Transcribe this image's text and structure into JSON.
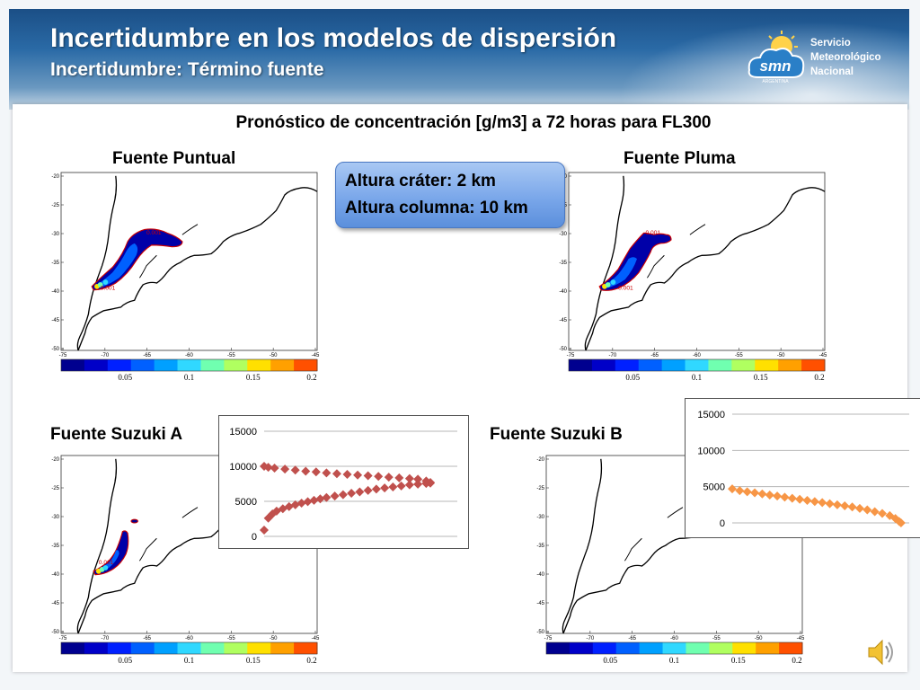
{
  "header": {
    "title": "Incertidumbre en los modelos de dispersión",
    "subtitle": "Incertidumbre: Término fuente",
    "logo_lines": [
      "Servicio",
      "Meteorológico",
      "Nacional"
    ],
    "logo_mark": "smn",
    "logo_small_text": "ARGENTINA"
  },
  "main_heading": "Pronóstico de concentración [g/m3] a 72 horas para FL300",
  "callout": {
    "line1": "Altura cráter: 2 km",
    "line2": "Altura columna: 10 km"
  },
  "maps": {
    "puntual": {
      "title": "Fuente Puntual",
      "plume_labels": [
        "0.001",
        "0.001"
      ]
    },
    "pluma": {
      "title": "Fuente Pluma",
      "plume_labels": [
        "0.001",
        "0.001"
      ]
    },
    "suzuki_a": {
      "title": "Fuente Suzuki A",
      "plume_labels": [
        "0.001"
      ]
    },
    "suzuki_b": {
      "title": "Fuente Suzuki B",
      "plume_labels": []
    },
    "lat_ticks": [
      "-20",
      "-25",
      "-30",
      "-35",
      "-40",
      "-45",
      "-50"
    ],
    "lon_ticks": [
      "-75",
      "-70",
      "-65",
      "-60",
      "-55",
      "-50",
      "-45"
    ],
    "colorbar_ticks": [
      "0.05",
      "0.1",
      "0.15",
      "0.2"
    ],
    "colorbar_colors": [
      "#00008f",
      "#0000c8",
      "#0020ff",
      "#0060ff",
      "#00a0ff",
      "#30d8ff",
      "#70ffb0",
      "#b0ff60",
      "#ffe000",
      "#ffa000",
      "#ff5000"
    ]
  },
  "chart_data": [
    {
      "type": "scatter",
      "series": [
        {
          "color": "#c0504d",
          "points": [
            [
              0,
              900
            ],
            [
              2,
              2600
            ],
            [
              4,
              3200
            ],
            [
              6,
              3600
            ],
            [
              9,
              3950
            ],
            [
              12,
              4250
            ],
            [
              15,
              4500
            ],
            [
              18,
              4750
            ],
            [
              21,
              4950
            ],
            [
              24,
              5150
            ],
            [
              27,
              5350
            ],
            [
              30,
              5550
            ],
            [
              34,
              5750
            ],
            [
              38,
              5950
            ],
            [
              42,
              6150
            ],
            [
              46,
              6350
            ],
            [
              50,
              6550
            ],
            [
              54,
              6750
            ],
            [
              58,
              6900
            ],
            [
              62,
              7050
            ],
            [
              66,
              7200
            ],
            [
              70,
              7350
            ],
            [
              74,
              7450
            ],
            [
              78,
              7550
            ],
            [
              80,
              7600
            ],
            [
              80,
              7700
            ],
            [
              78,
              7900
            ],
            [
              74,
              8150
            ],
            [
              70,
              8250
            ],
            [
              65,
              8350
            ],
            [
              60,
              8450
            ],
            [
              55,
              8550
            ],
            [
              50,
              8650
            ],
            [
              45,
              8750
            ],
            [
              40,
              8850
            ],
            [
              35,
              8950
            ],
            [
              30,
              9050
            ],
            [
              25,
              9200
            ],
            [
              20,
              9300
            ],
            [
              15,
              9450
            ],
            [
              10,
              9600
            ],
            [
              5,
              9750
            ],
            [
              2,
              9850
            ],
            [
              0,
              10000
            ]
          ]
        }
      ],
      "ylim": [
        0,
        15000
      ],
      "yticks": [
        "15000",
        "10000",
        "5000",
        "0"
      ]
    },
    {
      "type": "scatter",
      "series": [
        {
          "color": "#f79646",
          "points": [
            [
              0,
              4700
            ],
            [
              4,
              4450
            ],
            [
              8,
              4300
            ],
            [
              12,
              4150
            ],
            [
              16,
              4000
            ],
            [
              20,
              3850
            ],
            [
              24,
              3700
            ],
            [
              28,
              3550
            ],
            [
              32,
              3400
            ],
            [
              36,
              3250
            ],
            [
              40,
              3100
            ],
            [
              44,
              2950
            ],
            [
              48,
              2800
            ],
            [
              52,
              2650
            ],
            [
              56,
              2500
            ],
            [
              60,
              2350
            ],
            [
              64,
              2200
            ],
            [
              68,
              2000
            ],
            [
              72,
              1800
            ],
            [
              76,
              1550
            ],
            [
              80,
              1300
            ],
            [
              84,
              1000
            ],
            [
              87,
              600
            ],
            [
              89,
              200
            ],
            [
              90,
              0
            ]
          ]
        }
      ],
      "ylim": [
        0,
        15000
      ],
      "yticks": [
        "15000",
        "10000",
        "5000",
        "0"
      ]
    }
  ]
}
